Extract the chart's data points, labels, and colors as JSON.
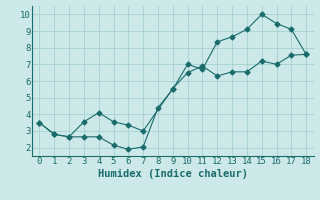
{
  "title": "",
  "xlabel": "Humidex (Indice chaleur)",
  "bg_color": "#cce8e8",
  "line_color": "#1a6b6b",
  "grid_color": "#aad4d4",
  "xlim": [
    -0.5,
    18.5
  ],
  "ylim": [
    1.5,
    10.5
  ],
  "xticks": [
    0,
    1,
    2,
    3,
    4,
    5,
    6,
    7,
    8,
    9,
    10,
    11,
    12,
    13,
    14,
    15,
    16,
    17,
    18
  ],
  "yticks": [
    2,
    3,
    4,
    5,
    6,
    7,
    8,
    9,
    10
  ],
  "line1_x": [
    0,
    1,
    2,
    3,
    4,
    5,
    6,
    7,
    8,
    9,
    10,
    11,
    12,
    13,
    14,
    15,
    16,
    17,
    18
  ],
  "line1_y": [
    3.5,
    2.8,
    2.65,
    2.65,
    2.65,
    2.15,
    1.9,
    2.05,
    4.4,
    5.5,
    7.0,
    6.7,
    8.35,
    8.65,
    9.1,
    10.0,
    9.45,
    9.1,
    7.6
  ],
  "line2_x": [
    0,
    1,
    2,
    3,
    4,
    5,
    6,
    7,
    9,
    10,
    11,
    12,
    13,
    14,
    15,
    16,
    17,
    18
  ],
  "line2_y": [
    3.5,
    2.8,
    2.65,
    3.55,
    4.1,
    3.55,
    3.35,
    3.0,
    5.55,
    6.5,
    6.9,
    6.3,
    6.55,
    6.55,
    7.2,
    7.0,
    7.55,
    7.6
  ],
  "marker": "D",
  "marker_size": 2.5,
  "linewidth": 0.8,
  "tick_fontsize": 6.5,
  "xlabel_fontsize": 7.5
}
